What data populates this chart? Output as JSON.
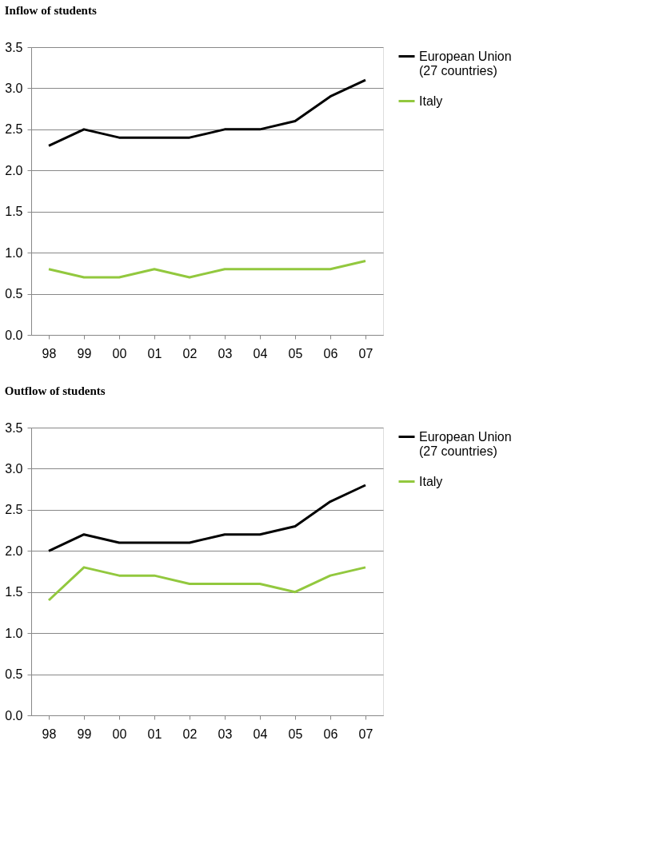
{
  "chart_data": [
    {
      "type": "line",
      "title": "Inflow of students",
      "categories": [
        "98",
        "99",
        "00",
        "01",
        "02",
        "03",
        "04",
        "05",
        "06",
        "07"
      ],
      "series": [
        {
          "name": "European Union (27 countries)",
          "color": "#000000",
          "values": [
            2.3,
            2.5,
            2.4,
            2.4,
            2.4,
            2.5,
            2.5,
            2.6,
            2.9,
            3.1
          ]
        },
        {
          "name": "Italy",
          "color": "#92c83e",
          "values": [
            0.8,
            0.7,
            0.7,
            0.8,
            0.7,
            0.8,
            0.8,
            0.8,
            0.8,
            0.9
          ]
        }
      ],
      "ylim": [
        0,
        3.5
      ],
      "yticks": [
        {
          "value": 0,
          "label": "0.0"
        },
        0.5,
        {
          "value": 1,
          "label": "1.0"
        },
        1.5,
        {
          "value": 2,
          "label": "2.0"
        },
        2.5,
        {
          "value": 3,
          "label": "3.0"
        },
        3.5
      ],
      "grid": "y",
      "legend": "right",
      "marker": "none",
      "line_style": "solid"
    },
    {
      "type": "line",
      "title": "Outflow of students",
      "categories": [
        "98",
        "99",
        "00",
        "01",
        "02",
        "03",
        "04",
        "05",
        "06",
        "07"
      ],
      "series": [
        {
          "name": "European Union (27 countries)",
          "color": "#000000",
          "values": [
            2.0,
            2.2,
            2.1,
            2.1,
            2.1,
            2.2,
            2.2,
            2.3,
            2.6,
            2.8
          ]
        },
        {
          "name": "Italy",
          "color": "#92c83e",
          "values": [
            1.4,
            1.8,
            1.7,
            1.7,
            1.6,
            1.6,
            1.6,
            1.5,
            1.7,
            1.8
          ]
        }
      ],
      "ylim": [
        0,
        3.5
      ],
      "yticks": [
        {
          "value": 0,
          "label": "0.0"
        },
        0.5,
        {
          "value": 1,
          "label": "1.0"
        },
        1.5,
        {
          "value": 2,
          "label": "2.0"
        },
        2.5,
        {
          "value": 3,
          "label": "3.0"
        },
        3.5
      ],
      "grid": "y",
      "legend": "right",
      "marker": "none",
      "line_style": "solid"
    }
  ]
}
